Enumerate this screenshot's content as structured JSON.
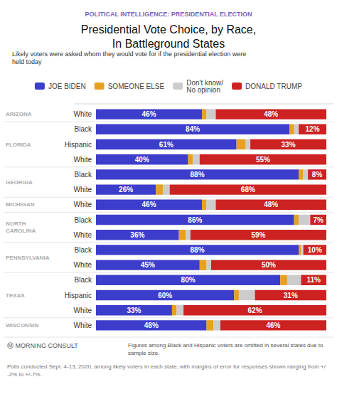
{
  "chart_data": {
    "type": "bar",
    "orientation": "horizontal",
    "stacked": true,
    "title": "Presidential Vote Choice, by Race,\nIn Battleground States",
    "subtitle": "POLITICAL INTELLIGENCE: PRESIDENTIAL ELECTION",
    "annotations": [
      "Likely voters were asked whom they would vote for if the presidential election were held today",
      "Ⓜ MORNING CONSULT",
      "Figures among Black and Hispanic voters are omitted in several states due to sample size.",
      "Polls conducted Sept. 4-13, 2020, among likely voters in each state, with margins of error for responses shown ranging from +/-2% to +/-7%."
    ],
    "categories": [
      "White",
      "Black",
      "Hispanic",
      "White",
      "Black",
      "White",
      "White",
      "Black",
      "White",
      "Black",
      "White",
      "Black",
      "Hispanic",
      "White",
      "White"
    ],
    "groups": [
      {
        "label": "ARIZONA",
        "categories": [
          "White"
        ]
      },
      {
        "label": "FLORIDA",
        "categories": [
          "Black",
          "Hispanic",
          "White"
        ]
      },
      {
        "label": "GEORGIA",
        "categories": [
          "Black",
          "White"
        ]
      },
      {
        "label": "MICHIGAN",
        "categories": [
          "White"
        ]
      },
      {
        "label": "NORTH\nCAROLINA",
        "categories": [
          "Black",
          "White"
        ]
      },
      {
        "label": "PENNSYLVANIA",
        "categories": [
          "Black",
          "White"
        ]
      },
      {
        "label": "TEXAS",
        "categories": [
          "Black",
          "Hispanic",
          "White"
        ]
      },
      {
        "label": "WISCONSIN",
        "categories": [
          "White"
        ]
      }
    ],
    "series": [
      {
        "name": "JOE BIDEN",
        "color": "#3d3dcc",
        "values": [
          46,
          84,
          61,
          40,
          88,
          26,
          46,
          86,
          36,
          88,
          45,
          80,
          60,
          33,
          48
        ],
        "data_labels": true,
        "value_labels": [
          "46%",
          "84%",
          "61%",
          "40%",
          "88%",
          "26%",
          "46%",
          "86%",
          "36%",
          "88%",
          "45%",
          "80%",
          "60%",
          "33%",
          "48%"
        ]
      },
      {
        "name": "SOMEONE ELSE",
        "color": "#e8a020",
        "values": [
          2,
          2,
          4,
          2,
          2,
          3,
          2,
          2,
          3,
          1,
          3,
          3,
          2,
          2,
          3
        ]
      },
      {
        "name": "Don't know/\nNo opinion",
        "color": "#cccccc",
        "values": [
          4,
          2,
          2,
          3,
          2,
          3,
          4,
          5,
          2,
          1,
          2,
          6,
          7,
          3,
          3
        ]
      },
      {
        "name": "DONALD TRUMP",
        "color": "#cc2222",
        "values": [
          48,
          12,
          33,
          55,
          8,
          68,
          48,
          7,
          59,
          10,
          50,
          11,
          31,
          62,
          46
        ],
        "data_labels": true,
        "value_labels": [
          "48%",
          "12%",
          "33%",
          "55%",
          "8%",
          "68%",
          "48%",
          "7%",
          "59%",
          "10%",
          "50%",
          "11%",
          "31%",
          "62%",
          "46%"
        ]
      }
    ],
    "xlim": [
      0,
      100
    ],
    "legend": "top",
    "grid": false,
    "tick_labels": "y"
  }
}
